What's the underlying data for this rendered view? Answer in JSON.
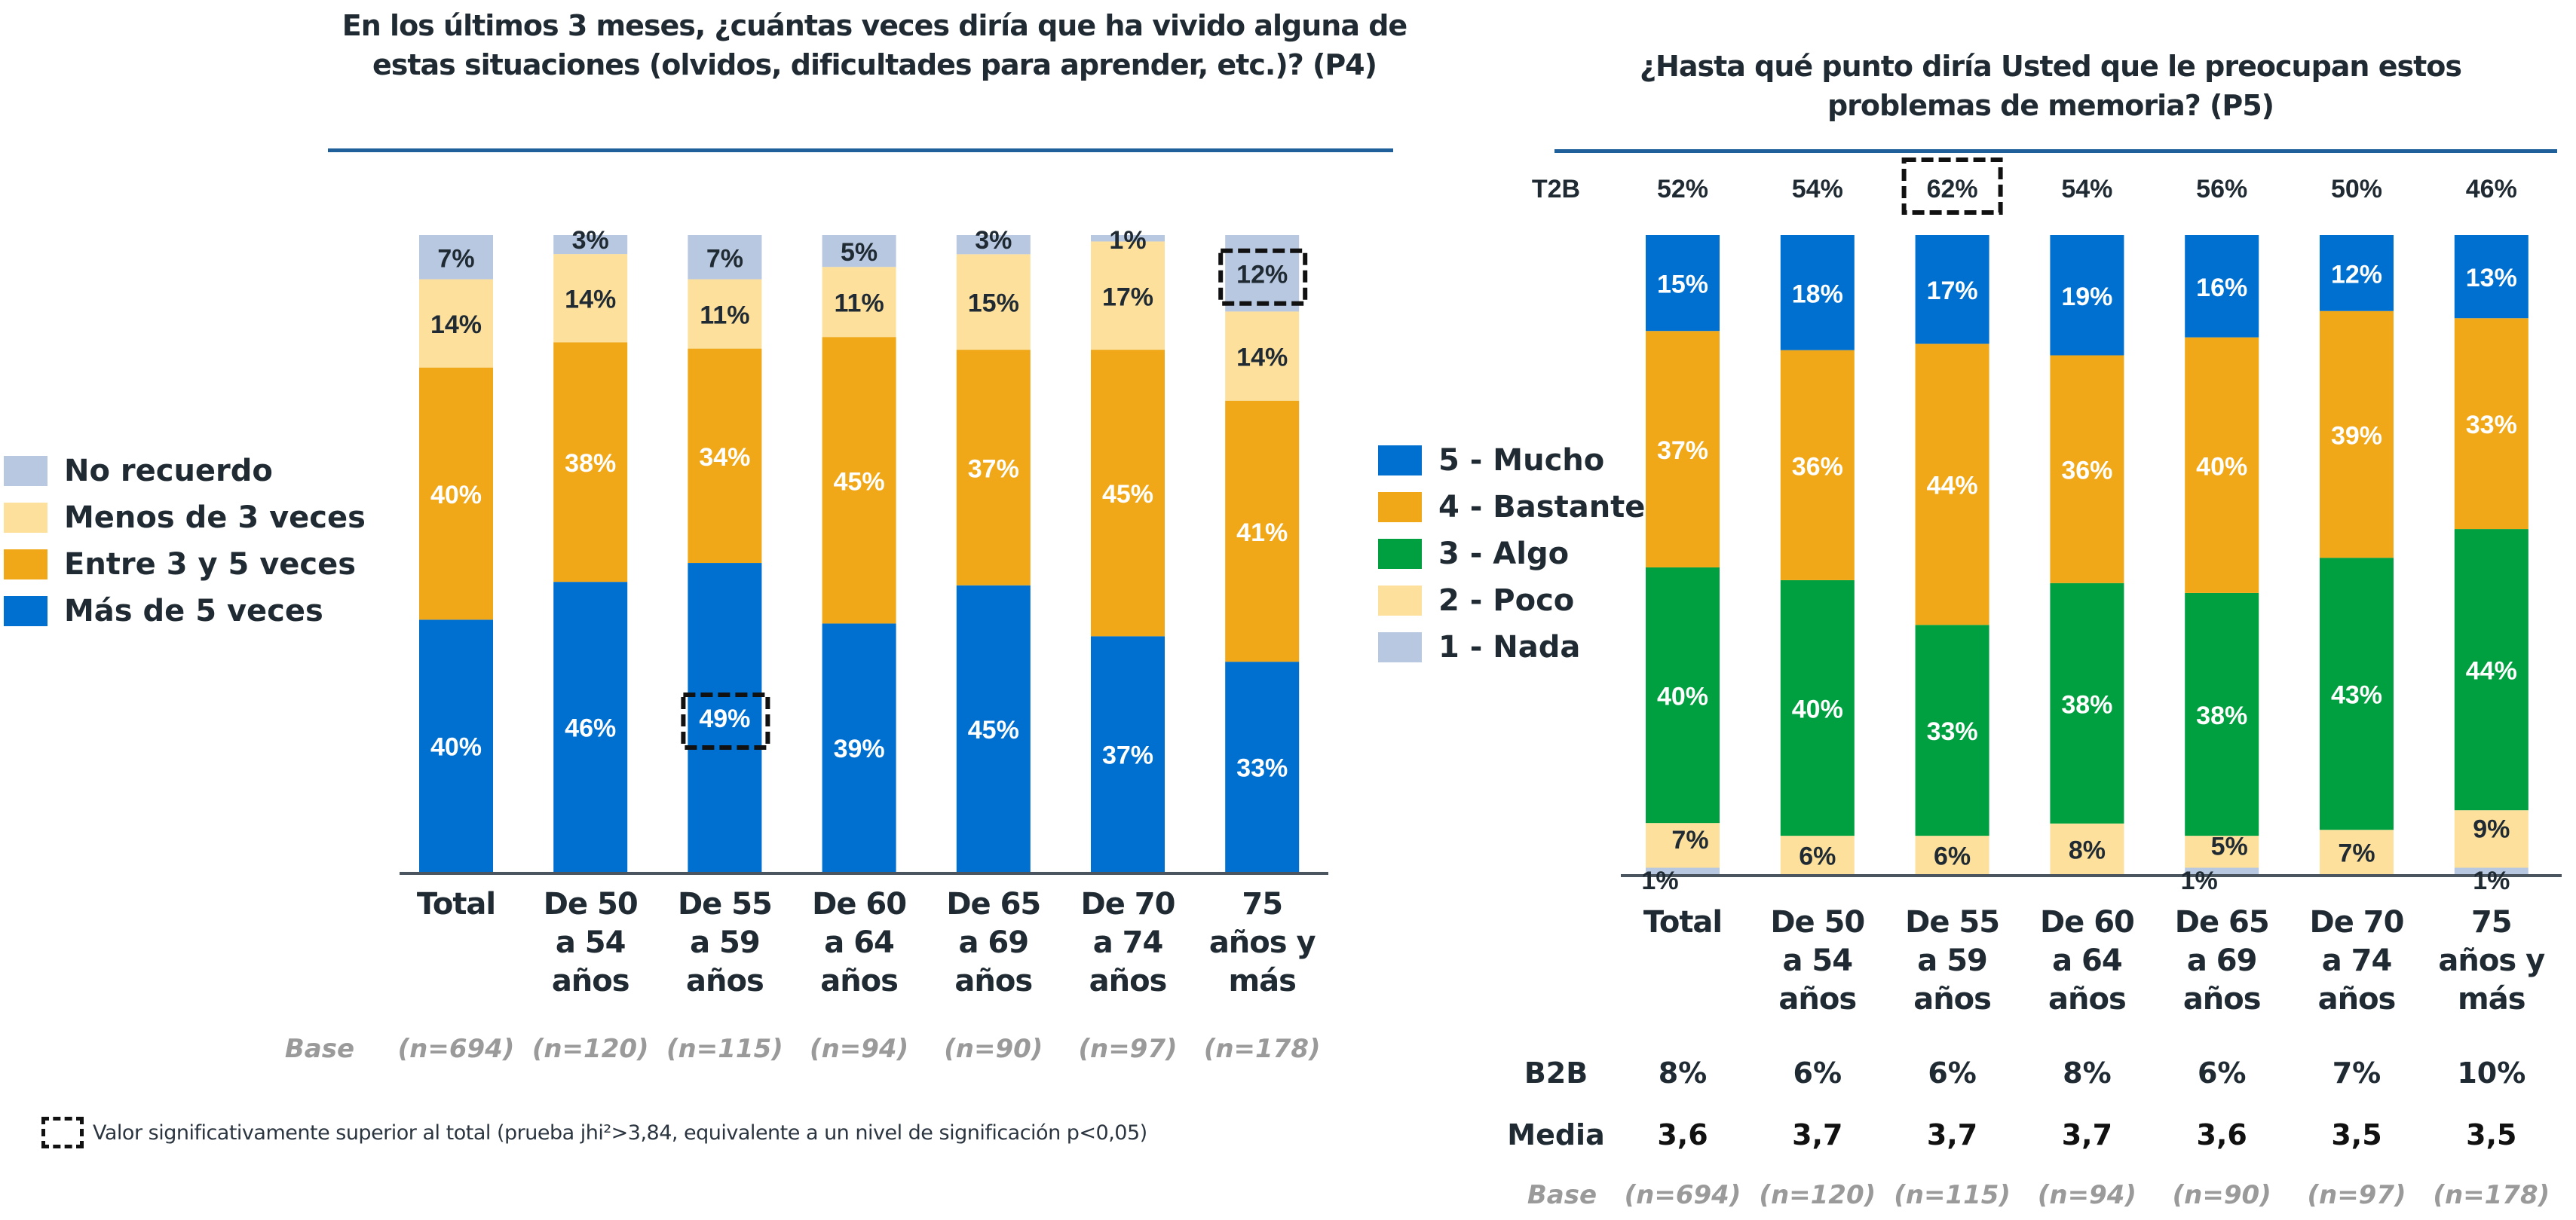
{
  "chart_data": [
    {
      "id": "p4",
      "type": "bar",
      "stacked": true,
      "title": "En los últimos 3 meses, ¿cuántas veces diría que ha vivido alguna de estas situaciones (olvidos, dificultades para aprender, etc.)? (P4)",
      "categories": [
        "Total",
        "De 50 a 54 años",
        "De 55 a 59 años",
        "De 60 a 64 años",
        "De 65 a 69 años",
        "De 70 a 74 años",
        "75 años y más"
      ],
      "category_lines": [
        [
          "Total"
        ],
        [
          "De 50",
          "a 54",
          "años"
        ],
        [
          "De 55",
          "a 59",
          "años"
        ],
        [
          "De 60",
          "a 64",
          "años"
        ],
        [
          "De 65",
          "a 69",
          "años"
        ],
        [
          "De 70",
          "a 74",
          "años"
        ],
        [
          "75",
          "años y",
          "más"
        ]
      ],
      "series": [
        {
          "name": "Más de 5 veces",
          "color": "#0070d0",
          "values": [
            40,
            46,
            49,
            39,
            45,
            37,
            33
          ]
        },
        {
          "name": "Entre 3 y 5 veces",
          "color": "#f0a818",
          "values": [
            40,
            38,
            34,
            45,
            37,
            45,
            41
          ]
        },
        {
          "name": "Menos de 3 veces",
          "color": "#fde09c",
          "values": [
            14,
            14,
            11,
            11,
            15,
            17,
            14
          ]
        },
        {
          "name": "No recuerdo",
          "color": "#b8c8e0",
          "values": [
            7,
            3,
            7,
            5,
            3,
            1,
            12
          ]
        }
      ],
      "significant": [
        {
          "series": "Más de 5 veces",
          "category": "De 55 a 59 años"
        },
        {
          "series": "No recuerdo",
          "category": "75 años y más"
        }
      ],
      "legend": [
        "No recuerdo",
        "Menos de 3 veces",
        "Entre 3 y 5 veces",
        "Más de 5 veces"
      ],
      "legend_position": "left",
      "base_label": "Base",
      "base": [
        "(n=694)",
        "(n=120)",
        "(n=115)",
        "(n=94)",
        "(n=90)",
        "(n=97)",
        "(n=178)"
      ],
      "ylim": [
        0,
        100
      ]
    },
    {
      "id": "p5",
      "type": "bar",
      "stacked": true,
      "title": "¿Hasta qué punto diría Usted que le preocupan estos problemas de memoria? (P5)",
      "categories": [
        "Total",
        "De 50 a 54 años",
        "De 55 a 59 años",
        "De 60 a 64 años",
        "De 65 a 69 años",
        "De 70 a 74 años",
        "75 años y más"
      ],
      "category_lines": [
        [
          "Total"
        ],
        [
          "De 50",
          "a 54",
          "años"
        ],
        [
          "De 55",
          "a 59",
          "años"
        ],
        [
          "De 60",
          "a 64",
          "años"
        ],
        [
          "De 65",
          "a 69",
          "años"
        ],
        [
          "De 70",
          "a 74",
          "años"
        ],
        [
          "75",
          "años y",
          "más"
        ]
      ],
      "series": [
        {
          "name": "1 - Nada",
          "color": "#b8c8e0",
          "values": [
            1,
            0,
            0,
            0,
            1,
            0,
            1
          ]
        },
        {
          "name": "2 - Poco",
          "color": "#fde09c",
          "values": [
            7,
            6,
            6,
            8,
            5,
            7,
            9
          ]
        },
        {
          "name": "3 - Algo",
          "color": "#00a040",
          "values": [
            40,
            40,
            33,
            38,
            38,
            43,
            44
          ]
        },
        {
          "name": "4 - Bastante",
          "color": "#f0a818",
          "values": [
            37,
            36,
            44,
            36,
            40,
            39,
            33
          ]
        },
        {
          "name": "5 - Mucho",
          "color": "#0070d0",
          "values": [
            15,
            18,
            17,
            19,
            16,
            12,
            13
          ]
        }
      ],
      "labels_shown": {
        "1 - Nada": [
          true,
          false,
          false,
          false,
          true,
          false,
          true
        ]
      },
      "legend": [
        "5 - Mucho",
        "4 - Bastante",
        "3 - Algo",
        "2 - Poco",
        "1 - Nada"
      ],
      "legend_position": "left",
      "t2b_label": "T2B",
      "t2b": [
        "52%",
        "54%",
        "62%",
        "54%",
        "56%",
        "50%",
        "46%"
      ],
      "t2b_significant": [
        false,
        false,
        true,
        false,
        false,
        false,
        false
      ],
      "b2b_label": "B2B",
      "b2b": [
        "8%",
        "6%",
        "6%",
        "8%",
        "6%",
        "7%",
        "10%"
      ],
      "media_label": "Media",
      "media": [
        "3,6",
        "3,7",
        "3,7",
        "3,7",
        "3,6",
        "3,5",
        "3,5"
      ],
      "base_label": "Base",
      "base": [
        "(n=694)",
        "(n=120)",
        "(n=115)",
        "(n=94)",
        "(n=90)",
        "(n=97)",
        "(n=178)"
      ],
      "ylim": [
        0,
        100
      ]
    }
  ],
  "footnote": "Valor significativamente superior al total (prueba jhi²>3,84, equivalente a un nivel de significación p<0,05)"
}
